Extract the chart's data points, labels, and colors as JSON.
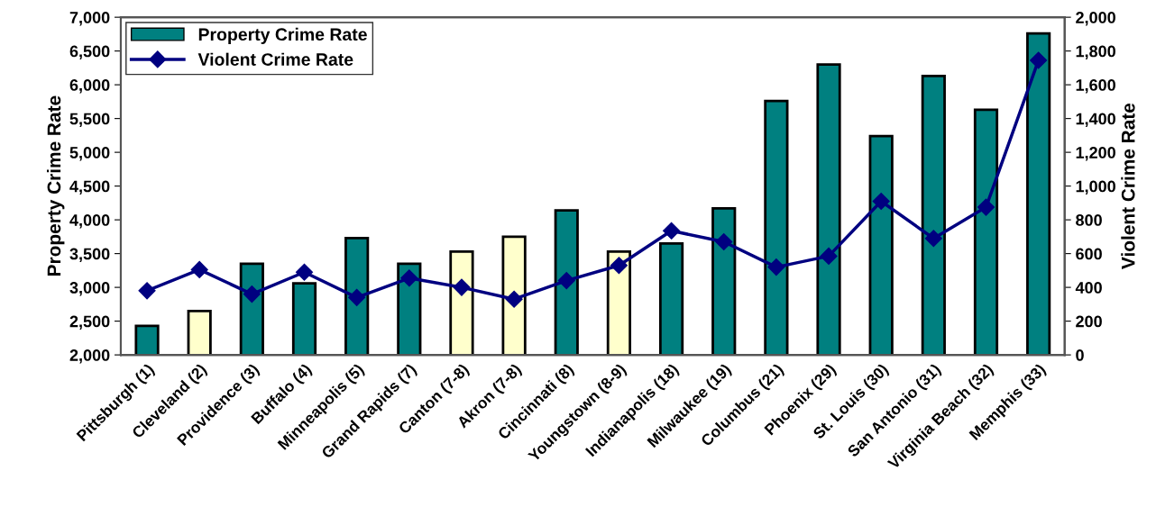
{
  "chart_data": {
    "type": "bar",
    "categories": [
      "Pittsburgh (1)",
      "Cleveland (2)",
      "Providence (3)",
      "Buffalo (4)",
      "Minneapolis (5)",
      "Grand Rapids (7)",
      "Canton (7-8)",
      "Akron (7-8)",
      "Cincinnati (8)",
      "Youngstown (8-9)",
      "Indianapolis (18)",
      "Milwaukee (19)",
      "Columbus (21)",
      "Phoenix (29)",
      "St. Louis (30)",
      "San Antonio (31)",
      "Virginia Beach (32)",
      "Memphis (33)"
    ],
    "series": [
      {
        "name": "Property Crime Rate",
        "color": "#008080",
        "colors": [
          "#008080",
          "#ffffcc",
          "#008080",
          "#008080",
          "#008080",
          "#008080",
          "#ffffcc",
          "#ffffcc",
          "#008080",
          "#ffffcc",
          "#008080",
          "#008080",
          "#008080",
          "#008080",
          "#008080",
          "#008080",
          "#008080",
          "#008080"
        ],
        "values": [
          2430,
          2650,
          3350,
          3060,
          3730,
          3350,
          3530,
          3750,
          4140,
          3530,
          3650,
          4170,
          5760,
          6300,
          5240,
          6130,
          5630,
          6760
        ]
      },
      {
        "name": "Violent Crime Rate",
        "type": "line",
        "axis": "y2",
        "color": "#000080",
        "marker": "diamond",
        "values": [
          380,
          505,
          360,
          490,
          340,
          455,
          400,
          330,
          440,
          530,
          735,
          670,
          520,
          585,
          910,
          690,
          875,
          1745
        ]
      }
    ],
    "ylabel": "Property Crime Rate",
    "y2label": "Violent Crime Rate",
    "ylim": [
      2000,
      7000
    ],
    "yticks": [
      {
        "value": 2000,
        "label": "2,000"
      },
      {
        "value": 2500,
        "label": "2,500"
      },
      {
        "value": 3000,
        "label": "3,000"
      },
      {
        "value": 3500,
        "label": "3,500"
      },
      {
        "value": 4000,
        "label": "4,000"
      },
      {
        "value": 4500,
        "label": "4,500"
      },
      {
        "value": 5000,
        "label": "5,000"
      },
      {
        "value": 5500,
        "label": "5,500"
      },
      {
        "value": 6000,
        "label": "6,000"
      },
      {
        "value": 6500,
        "label": "6,500"
      },
      {
        "value": 7000,
        "label": "7,000"
      }
    ],
    "y2lim": [
      0,
      2000
    ],
    "y2ticks": [
      0,
      200,
      400,
      600,
      800,
      {
        "value": 1000,
        "label": "1,000"
      },
      {
        "value": 1200,
        "label": "1,200"
      },
      {
        "value": 1400,
        "label": "1,400"
      },
      {
        "value": 1600,
        "label": "1,600"
      },
      {
        "value": 1800,
        "label": "1,800"
      },
      {
        "value": 2000,
        "label": "2,000"
      }
    ],
    "grid": false,
    "legend": "top left"
  }
}
